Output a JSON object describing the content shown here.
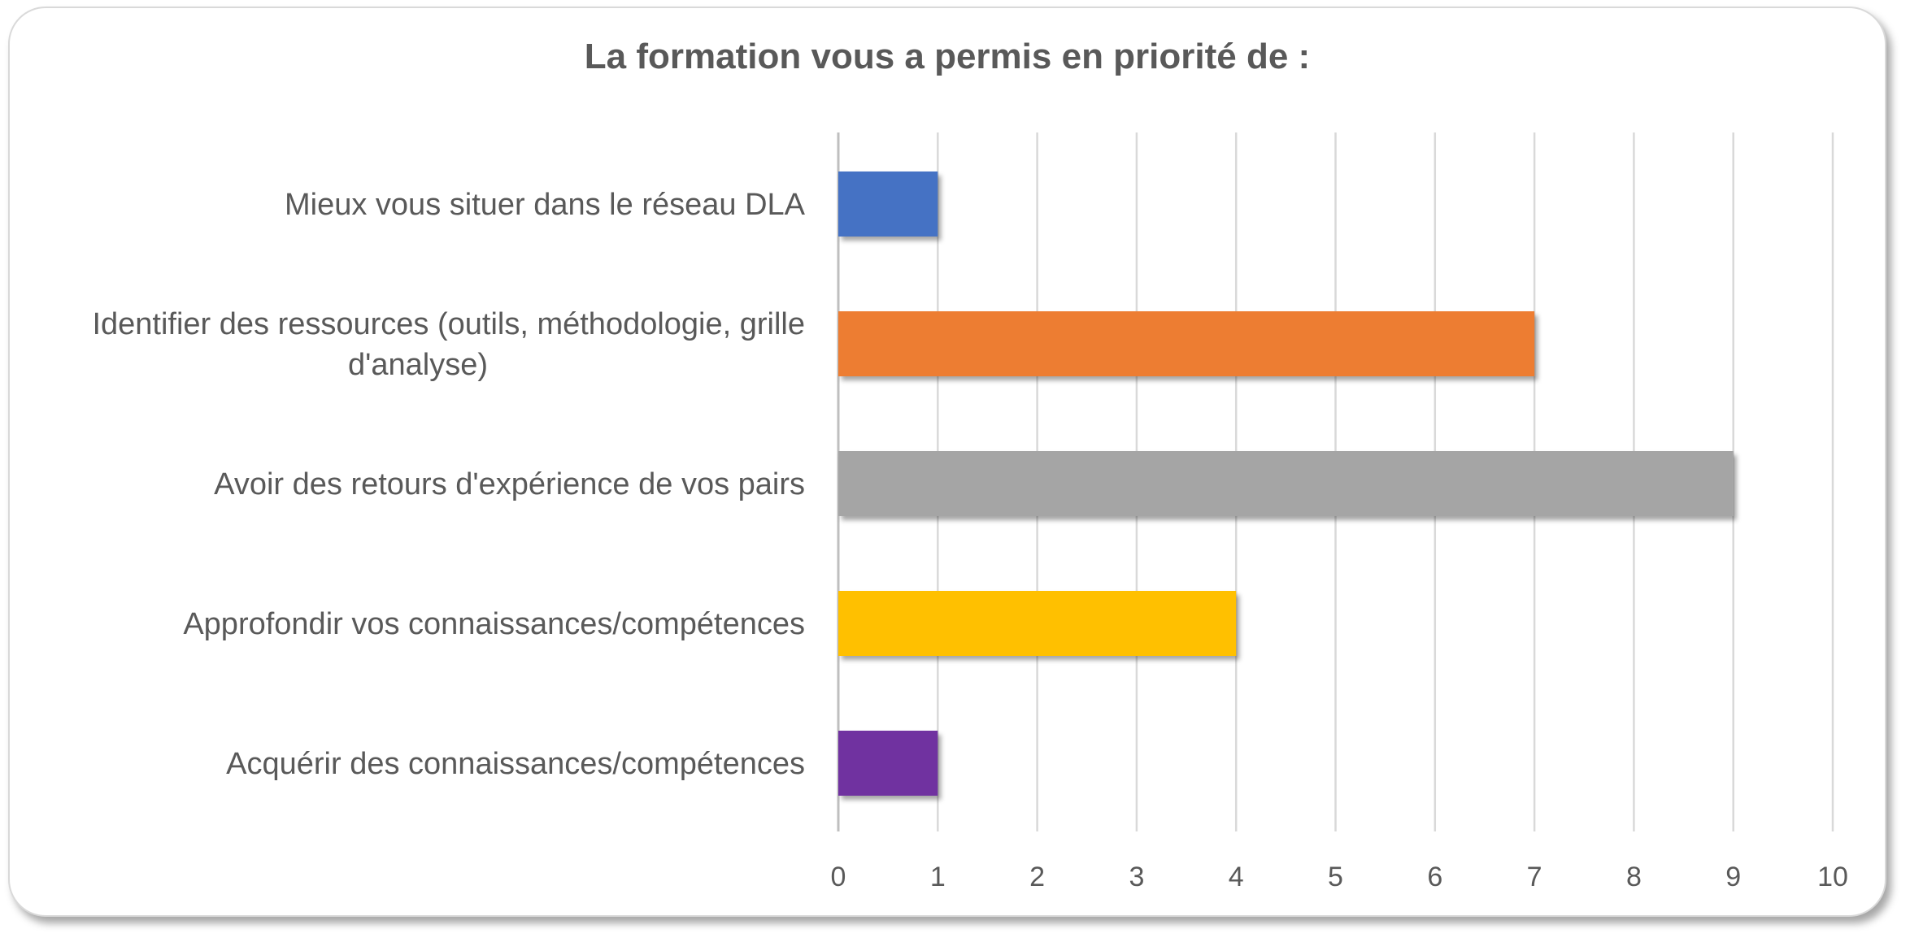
{
  "chart_data": {
    "type": "bar",
    "orientation": "horizontal",
    "title": "La formation vous a permis en priorité de :",
    "categories": [
      "Mieux vous situer dans le réseau DLA",
      "Identifier des ressources (outils, méthodologie, grille d'analyse)",
      "Avoir des retours d'expérience de vos pairs",
      "Approfondir vos connaissances/compétences",
      "Acquérir des connaissances/compétences"
    ],
    "category_lines": [
      [
        "Mieux vous situer dans le réseau DLA"
      ],
      [
        "Identifier des ressources (outils, méthodologie, grille",
        "d'analyse)"
      ],
      [
        "Avoir des retours d'expérience de vos pairs"
      ],
      [
        "Approfondir vos connaissances/compétences"
      ],
      [
        "Acquérir des connaissances/compétences"
      ]
    ],
    "values": [
      1,
      7,
      9,
      4,
      1
    ],
    "colors": [
      "#4472c4",
      "#ed7d31",
      "#a5a5a5",
      "#ffc000",
      "#7030a0"
    ],
    "xlim": [
      0,
      10
    ],
    "xticks": [
      "0",
      "1",
      "2",
      "3",
      "4",
      "5",
      "6",
      "7",
      "8",
      "9",
      "10"
    ],
    "grid": true,
    "gridline_color": "#d9d9d9",
    "legend": "none"
  }
}
